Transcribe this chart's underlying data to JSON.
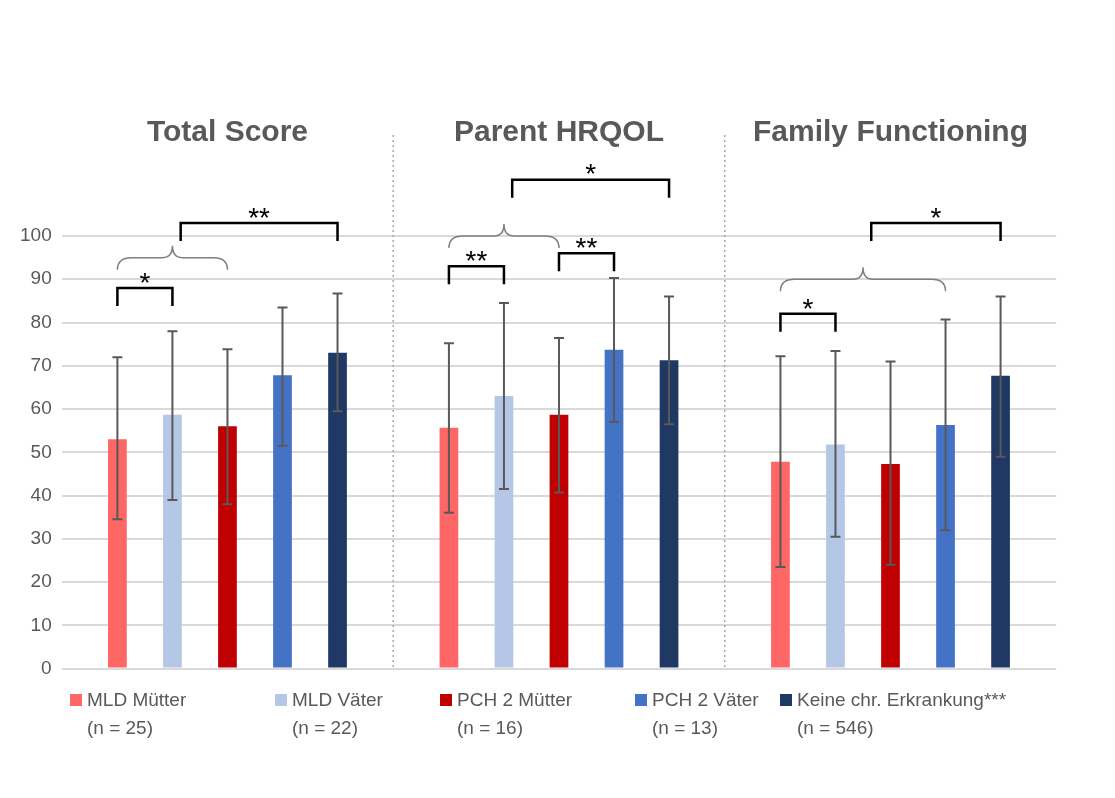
{
  "chart_data": {
    "type": "bar",
    "categories": [
      "Total Score",
      "Parent HRQOL",
      "Family Functioning"
    ],
    "series": [
      {
        "name": "MLD Mütter\n(n = 25)",
        "color": "#ff6666",
        "values": [
          53,
          55.7,
          47.8
        ],
        "errors": [
          [
            34.5,
            72
          ],
          [
            36,
            75.2
          ],
          [
            23.5,
            72.2
          ]
        ]
      },
      {
        "name": "MLD Väter\n(n = 22)",
        "color": "#b4c7e7",
        "values": [
          58.7,
          63,
          51.8
        ],
        "errors": [
          [
            39,
            78
          ],
          [
            41.5,
            84.5
          ],
          [
            30.5,
            73.4
          ]
        ]
      },
      {
        "name": "PCH 2 Mütter\n(n = 16)",
        "color": "#c00000",
        "values": [
          56,
          58.7,
          47.3
        ],
        "errors": [
          [
            38,
            73.8
          ],
          [
            40.7,
            76.4
          ],
          [
            24,
            71
          ]
        ]
      },
      {
        "name": "PCH 2 Väter\n(n = 13)",
        "color": "#4472c4",
        "values": [
          67.8,
          73.7,
          56.3
        ],
        "errors": [
          [
            51.5,
            83.5
          ],
          [
            57,
            90.3
          ],
          [
            32,
            80.7
          ]
        ]
      },
      {
        "name": "Keine chr. Erkrankung***\n(n = 546)",
        "color": "#1f3864",
        "values": [
          73,
          71.3,
          67.7
        ],
        "errors": [
          [
            59.5,
            86.7
          ],
          [
            56.5,
            86
          ],
          [
            49,
            86
          ]
        ]
      }
    ],
    "ylim": [
      0,
      100
    ],
    "yticks": [
      0,
      10,
      20,
      30,
      40,
      50,
      60,
      70,
      80,
      90,
      100
    ],
    "grid": "y",
    "legend": "bottom",
    "annotations": [
      "*",
      "**",
      "**",
      "**",
      "*",
      "*",
      "*"
    ]
  }
}
